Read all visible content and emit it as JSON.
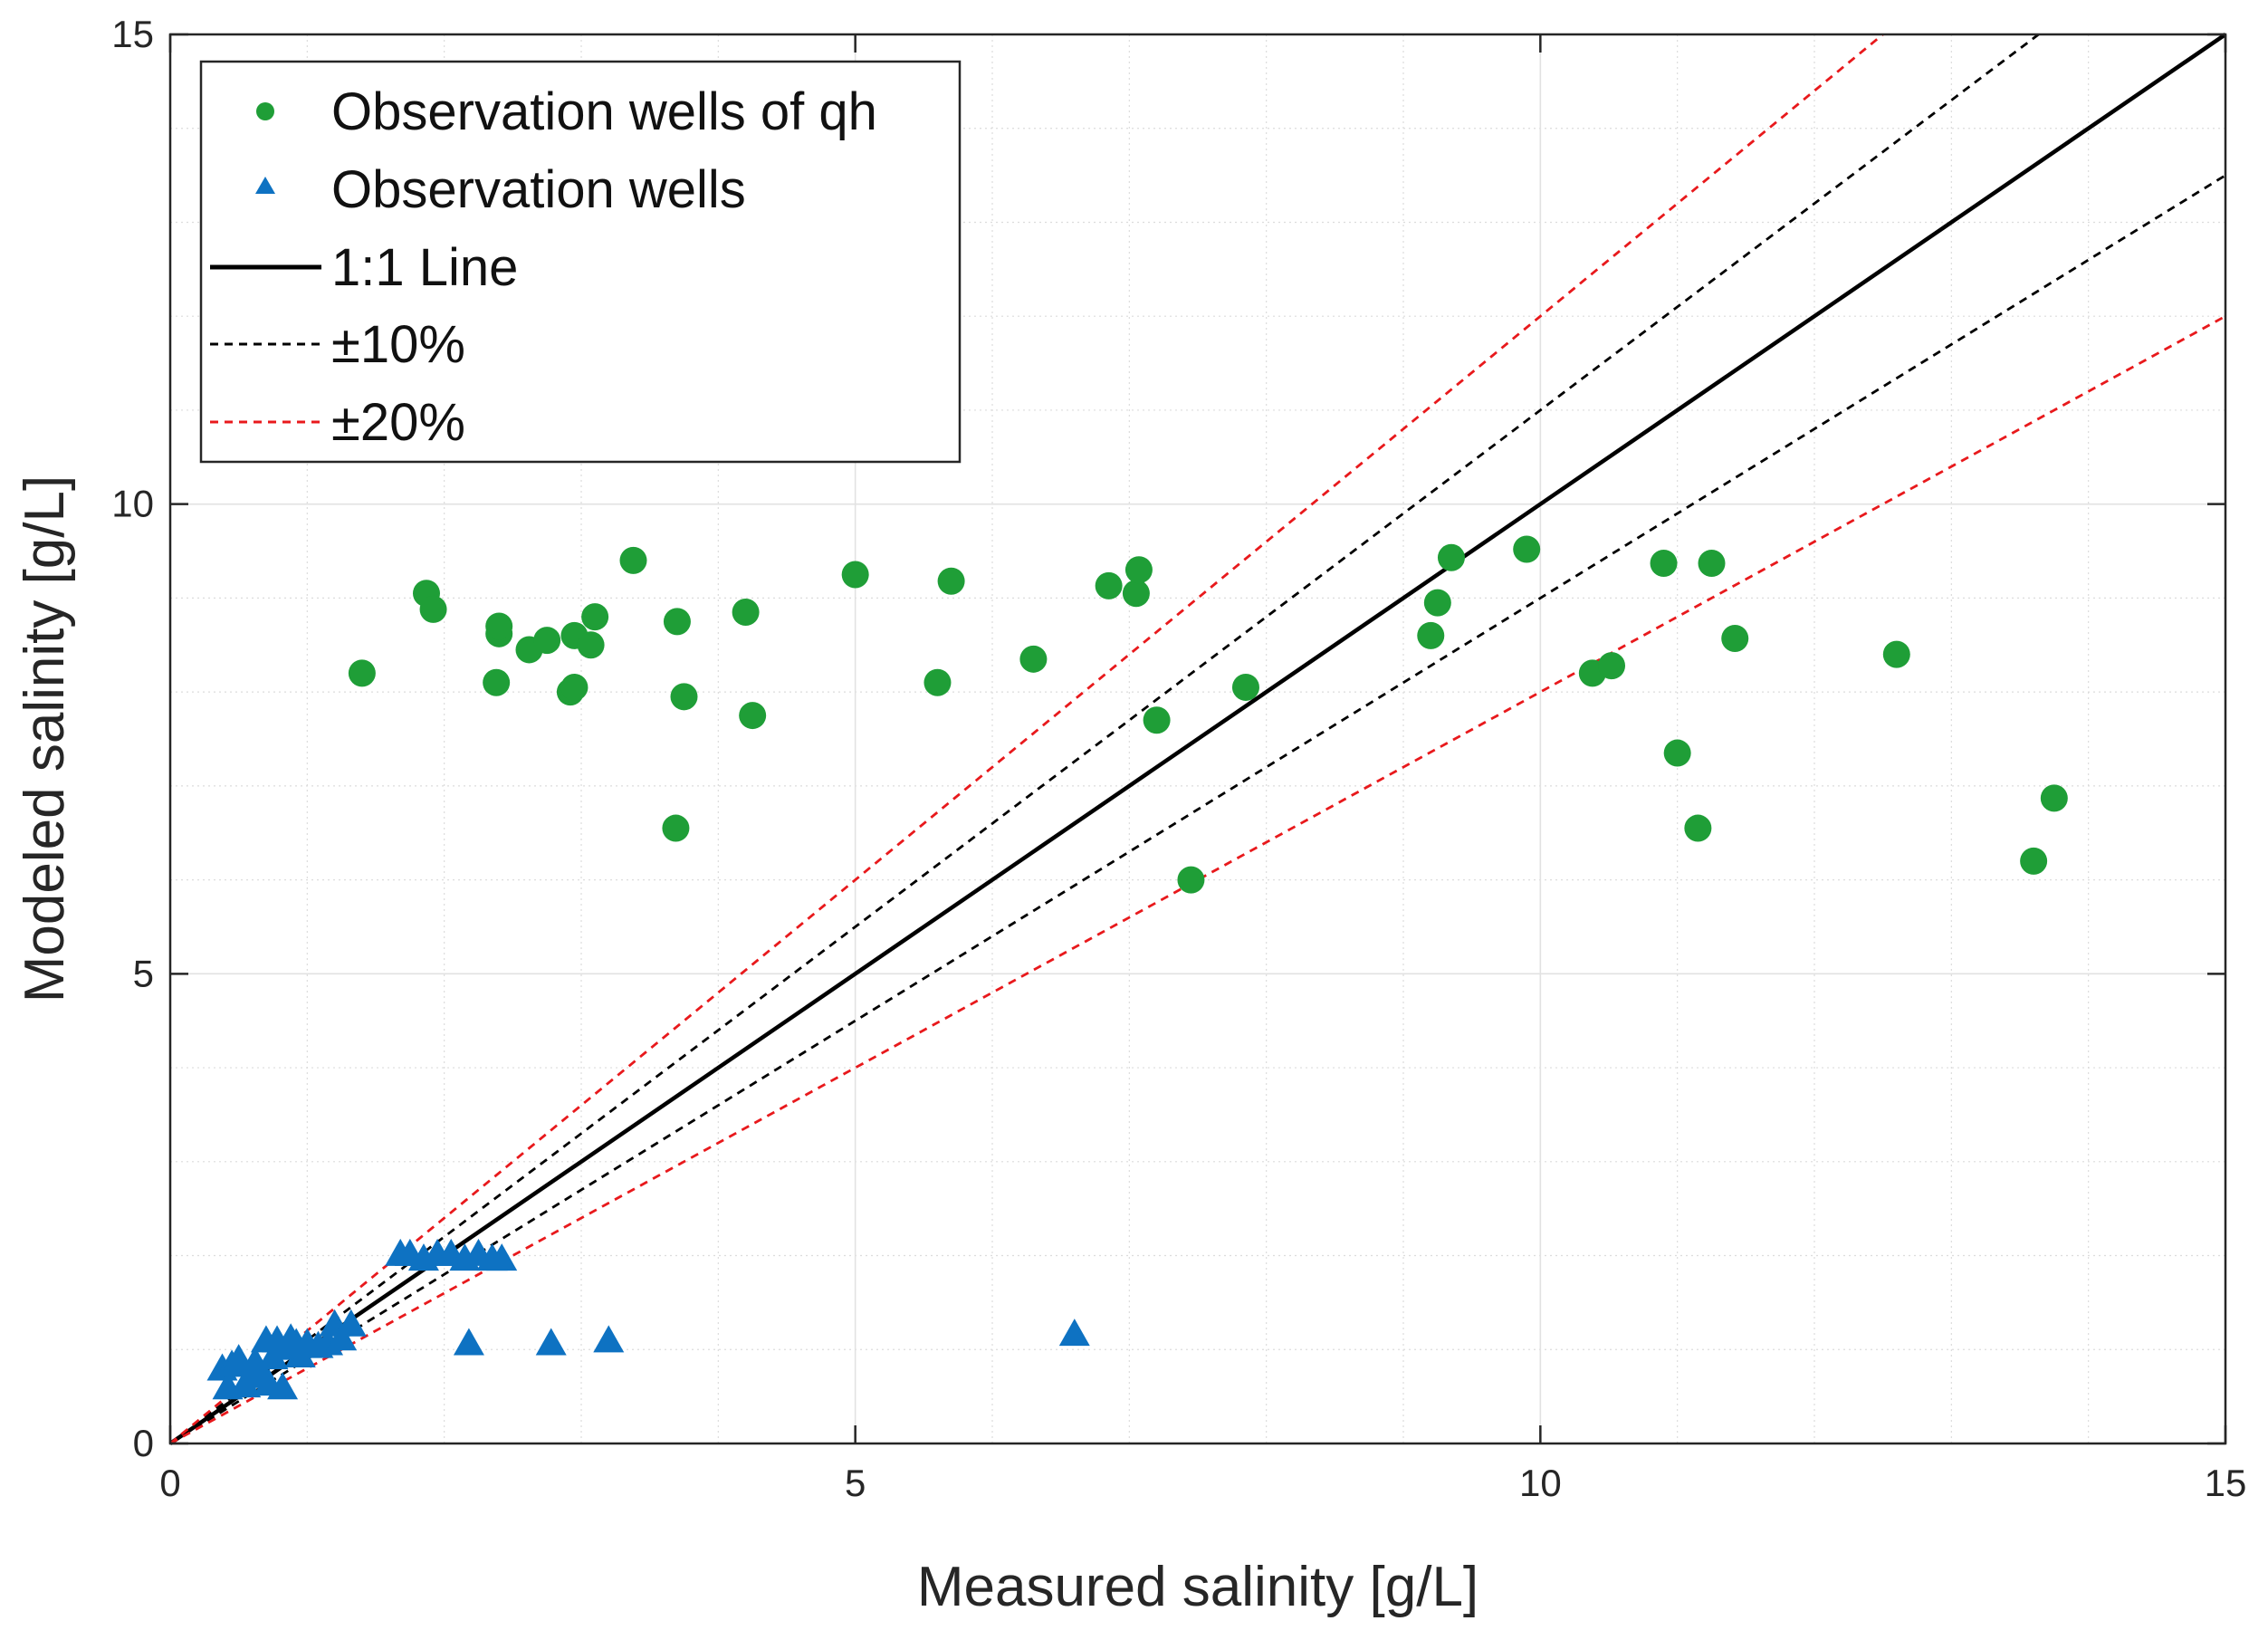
{
  "chart_data": {
    "type": "scatter",
    "xlabel": "Measured salinity [g/L]",
    "ylabel": "Modeled salinity [g/L]",
    "xlim": [
      0,
      15
    ],
    "ylim": [
      0,
      15
    ],
    "xticks": [
      0,
      5,
      10,
      15
    ],
    "yticks": [
      0,
      5,
      10,
      15
    ],
    "grid": true,
    "minor_grid": true,
    "legend_position": "top-left",
    "series": [
      {
        "name": "Observation wells of qh",
        "marker": "circle",
        "color": "#1f9e37",
        "points": [
          [
            1.4,
            8.2
          ],
          [
            1.87,
            9.05
          ],
          [
            1.92,
            8.88
          ],
          [
            2.38,
            8.1
          ],
          [
            2.4,
            8.62
          ],
          [
            2.4,
            8.7
          ],
          [
            2.62,
            8.45
          ],
          [
            2.75,
            8.55
          ],
          [
            2.92,
            8.0
          ],
          [
            2.95,
            8.05
          ],
          [
            2.95,
            8.6
          ],
          [
            3.07,
            8.5
          ],
          [
            3.1,
            8.8
          ],
          [
            3.38,
            9.4
          ],
          [
            3.69,
            6.55
          ],
          [
            3.7,
            8.75
          ],
          [
            3.75,
            7.95
          ],
          [
            4.2,
            8.85
          ],
          [
            4.25,
            7.75
          ],
          [
            5.0,
            9.25
          ],
          [
            5.6,
            8.1
          ],
          [
            5.7,
            9.18
          ],
          [
            6.3,
            8.35
          ],
          [
            6.85,
            9.13
          ],
          [
            7.05,
            9.05
          ],
          [
            7.07,
            9.3
          ],
          [
            7.2,
            7.7
          ],
          [
            7.45,
            6.0
          ],
          [
            7.85,
            8.05
          ],
          [
            9.2,
            8.6
          ],
          [
            9.25,
            8.95
          ],
          [
            9.35,
            9.43
          ],
          [
            9.9,
            9.52
          ],
          [
            10.38,
            8.2
          ],
          [
            10.52,
            8.28
          ],
          [
            10.9,
            9.37
          ],
          [
            11.0,
            7.35
          ],
          [
            11.15,
            6.55
          ],
          [
            11.25,
            9.37
          ],
          [
            11.42,
            8.57
          ],
          [
            12.6,
            8.4
          ],
          [
            13.6,
            6.2
          ],
          [
            13.75,
            6.87
          ]
        ]
      },
      {
        "name": "Observation wells",
        "marker": "triangle",
        "color": "#0e72c2",
        "points": [
          [
            0.38,
            0.78
          ],
          [
            0.42,
            0.58
          ],
          [
            0.45,
            0.82
          ],
          [
            0.5,
            0.88
          ],
          [
            0.55,
            0.6
          ],
          [
            0.58,
            0.7
          ],
          [
            0.62,
            0.85
          ],
          [
            0.65,
            0.72
          ],
          [
            0.7,
            1.08
          ],
          [
            0.72,
            0.62
          ],
          [
            0.75,
            0.9
          ],
          [
            0.78,
            1.08
          ],
          [
            0.82,
            0.58
          ],
          [
            0.85,
            1.0
          ],
          [
            0.88,
            1.1
          ],
          [
            0.92,
            1.05
          ],
          [
            0.95,
            0.92
          ],
          [
            1.0,
            1.05
          ],
          [
            1.08,
            1.02
          ],
          [
            1.15,
            1.05
          ],
          [
            1.2,
            1.25
          ],
          [
            1.25,
            1.1
          ],
          [
            1.32,
            1.25
          ],
          [
            1.68,
            2.0
          ],
          [
            1.75,
            2.0
          ],
          [
            1.85,
            1.95
          ],
          [
            1.95,
            2.0
          ],
          [
            2.05,
            2.0
          ],
          [
            2.15,
            1.95
          ],
          [
            2.25,
            2.0
          ],
          [
            2.35,
            1.95
          ],
          [
            2.42,
            1.95
          ],
          [
            2.18,
            1.05
          ],
          [
            2.78,
            1.05
          ],
          [
            3.2,
            1.08
          ],
          [
            6.6,
            1.15
          ]
        ]
      },
      {
        "name": "1:1 Line",
        "line": "solid",
        "color": "#000000",
        "slope": 1.0
      },
      {
        "name": "±10%",
        "line": "dashed",
        "color": "#000000",
        "slopes": [
          1.1,
          0.9
        ]
      },
      {
        "name": "±20%",
        "line": "dashed",
        "color": "#e8191c",
        "slopes": [
          1.2,
          0.8
        ]
      }
    ]
  }
}
